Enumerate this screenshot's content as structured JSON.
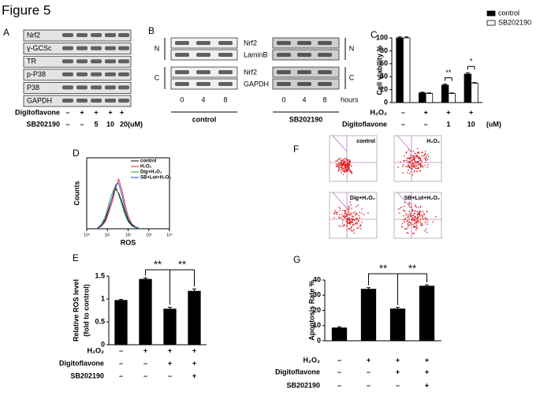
{
  "title": "Figure 5",
  "panel_a": {
    "label": "A",
    "rows": [
      "Nrf2",
      "γ-GCSc",
      "TR",
      "p-P38",
      "P38",
      "GAPDH"
    ],
    "treatments": [
      {
        "label": "Digitoflavone",
        "values": [
          "–",
          "+",
          "+",
          "+",
          "+"
        ]
      },
      {
        "label": "SB202190",
        "values": [
          "–",
          "–",
          "5",
          "10",
          "20(uM)"
        ]
      }
    ]
  },
  "panel_b": {
    "label": "B",
    "fractions": [
      {
        "label": "N",
        "rows": [
          "Nrf2",
          "LaminB"
        ]
      },
      {
        "label": "C",
        "rows": [
          "Nrf2",
          "GAPDH"
        ]
      }
    ],
    "times": [
      "0",
      "4",
      "8"
    ],
    "unit": "hours",
    "groups": [
      "control",
      "SB202190"
    ]
  },
  "panel_f": {
    "label": "F",
    "plots": [
      "control",
      "H₂O₂",
      "Dig+H₂O₂",
      "SB+Lut+H₂O₂"
    ]
  },
  "chart_data": [
    {
      "type": "bar",
      "panel": "C",
      "ylabel": "Cell viability %",
      "ylim": [
        0,
        100
      ],
      "yticks": [
        0,
        20,
        40,
        60,
        80,
        100
      ],
      "series": [
        {
          "name": "control",
          "color": "#000000",
          "values": [
            100,
            15,
            27,
            44
          ],
          "errors": [
            1.5,
            1,
            1.5,
            2
          ]
        },
        {
          "name": "SB202190",
          "color": "#ffffff",
          "values": [
            100,
            14,
            14,
            30
          ],
          "errors": [
            1.5,
            1,
            1,
            1
          ]
        }
      ],
      "conditions": [
        {
          "label": "H₂O₂",
          "values": [
            "–",
            "+",
            "+",
            "+"
          ]
        },
        {
          "label": "Digitoflavone",
          "values": [
            "–",
            "–",
            "1",
            "10",
            "(uM)"
          ]
        }
      ],
      "annotations": [
        "**",
        "*"
      ]
    },
    {
      "type": "line",
      "panel": "D",
      "xlabel": "ROS",
      "ylabel": "Counts",
      "xscale": "log",
      "xlim": [
        1,
        10000
      ],
      "xticks": [
        {
          "value": 1,
          "label": "10⁰"
        },
        {
          "value": 10,
          "label": "10¹"
        },
        {
          "value": 100,
          "label": "10²"
        },
        {
          "value": 1000,
          "label": "10³"
        },
        {
          "value": 10000,
          "label": "10⁴"
        }
      ],
      "ylim": [
        0,
        100
      ],
      "x": [
        3,
        5,
        8,
        12,
        18,
        25,
        35,
        50,
        70,
        100,
        150,
        250,
        400
      ],
      "series": [
        {
          "name": "control",
          "color": "#000000",
          "values": [
            0,
            4,
            14,
            30,
            45,
            56,
            50,
            38,
            24,
            12,
            5,
            2,
            0
          ]
        },
        {
          "name": "H₂O₂",
          "color": "#e02020",
          "values": [
            0,
            3,
            10,
            24,
            40,
            58,
            70,
            55,
            35,
            18,
            7,
            2,
            0
          ]
        },
        {
          "name": "Dig+H₂O₂",
          "color": "#20a020",
          "values": [
            0,
            6,
            18,
            36,
            52,
            60,
            48,
            34,
            20,
            10,
            4,
            1,
            0
          ]
        },
        {
          "name": "SB+Lut+H₂O₂",
          "color": "#2040e0",
          "values": [
            0,
            4,
            12,
            28,
            46,
            62,
            64,
            48,
            28,
            14,
            6,
            2,
            0
          ]
        }
      ]
    },
    {
      "type": "bar",
      "panel": "E",
      "ylabel": [
        "Relative ROS level",
        "(fold to control)"
      ],
      "ylim": [
        0,
        1.5
      ],
      "yticks": [
        0,
        0.5,
        1,
        1.5
      ],
      "values": [
        0.97,
        1.43,
        0.78,
        1.17
      ],
      "errors": [
        0.02,
        0.03,
        0.04,
        0.05
      ],
      "color": "#000000",
      "conditions": [
        {
          "label": "H₂O₂",
          "values": [
            "–",
            "+",
            "+",
            "+"
          ]
        },
        {
          "label": "Digitoflavone",
          "values": [
            "–",
            "–",
            "+",
            "+"
          ]
        },
        {
          "label": "SB202190",
          "values": [
            "–",
            "–",
            "–",
            "+"
          ]
        }
      ],
      "annotations": [
        "**",
        "**"
      ]
    },
    {
      "type": "bar",
      "panel": "G",
      "ylabel": "Apoptosis Rate %",
      "ylim": [
        0,
        40
      ],
      "yticks": [
        0,
        10,
        20,
        30,
        40
      ],
      "values": [
        8.5,
        34,
        21,
        36
      ],
      "errors": [
        0.7,
        1,
        1,
        0.8
      ],
      "color": "#000000",
      "conditions": [
        {
          "label": "H₂O₂",
          "values": [
            "–",
            "+",
            "+",
            "+"
          ]
        },
        {
          "label": "Digitoflavone",
          "values": [
            "–",
            "–",
            "+",
            "+"
          ]
        },
        {
          "label": "SB202190",
          "values": [
            "–",
            "–",
            "–",
            "+"
          ]
        }
      ],
      "annotations": [
        "**",
        "**"
      ]
    }
  ]
}
